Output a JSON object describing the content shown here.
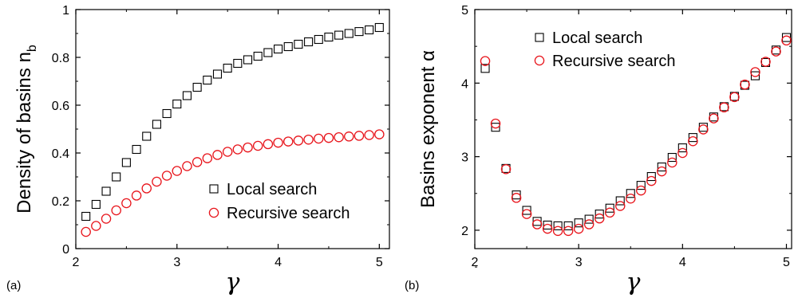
{
  "chart_data": [
    {
      "type": "scatter",
      "panel_label": "(a)",
      "xlabel": "γ",
      "ylabel": "Density of basins n",
      "ylabel_sub": "b",
      "xlim": [
        2,
        5.1
      ],
      "ylim": [
        0,
        1
      ],
      "xticks": [
        "2",
        "3",
        "4",
        "5"
      ],
      "yticks": [
        "0",
        "0.2",
        "0.4",
        "0.6",
        "0.8",
        "1"
      ],
      "legend_position": "lower-right",
      "series": [
        {
          "name": "Local search",
          "marker": "square",
          "color": "#000000",
          "x": [
            2.1,
            2.2,
            2.3,
            2.4,
            2.5,
            2.6,
            2.7,
            2.8,
            2.9,
            3.0,
            3.1,
            3.2,
            3.3,
            3.4,
            3.5,
            3.6,
            3.7,
            3.8,
            3.9,
            4.0,
            4.1,
            4.2,
            4.3,
            4.4,
            4.5,
            4.6,
            4.7,
            4.8,
            4.9,
            5.0
          ],
          "y": [
            0.135,
            0.185,
            0.24,
            0.3,
            0.36,
            0.415,
            0.47,
            0.52,
            0.565,
            0.605,
            0.64,
            0.675,
            0.705,
            0.73,
            0.755,
            0.775,
            0.79,
            0.805,
            0.82,
            0.835,
            0.845,
            0.855,
            0.865,
            0.875,
            0.885,
            0.893,
            0.9,
            0.908,
            0.915,
            0.925
          ]
        },
        {
          "name": "Recursive search",
          "marker": "circle",
          "color": "#e8141b",
          "x": [
            2.1,
            2.2,
            2.3,
            2.4,
            2.5,
            2.6,
            2.7,
            2.8,
            2.9,
            3.0,
            3.1,
            3.2,
            3.3,
            3.4,
            3.5,
            3.6,
            3.7,
            3.8,
            3.9,
            4.0,
            4.1,
            4.2,
            4.3,
            4.4,
            4.5,
            4.6,
            4.7,
            4.8,
            4.9,
            5.0
          ],
          "y": [
            0.07,
            0.095,
            0.125,
            0.16,
            0.19,
            0.222,
            0.252,
            0.28,
            0.305,
            0.325,
            0.345,
            0.362,
            0.378,
            0.392,
            0.405,
            0.415,
            0.423,
            0.43,
            0.437,
            0.443,
            0.448,
            0.452,
            0.456,
            0.46,
            0.463,
            0.466,
            0.469,
            0.472,
            0.475,
            0.478
          ]
        }
      ]
    },
    {
      "type": "scatter",
      "panel_label": "(b)",
      "xlabel": "γ",
      "ylabel": "Basins exponent α",
      "xlim": [
        2,
        5.05
      ],
      "ylim": [
        1.75,
        5
      ],
      "xticks": [
        "2",
        "3",
        "4",
        "5"
      ],
      "yticks": [
        "2",
        "3",
        "4",
        "5"
      ],
      "legend_position": "top-left",
      "series": [
        {
          "name": "Local search",
          "marker": "square",
          "color": "#000000",
          "x": [
            2.1,
            2.2,
            2.3,
            2.4,
            2.5,
            2.6,
            2.7,
            2.8,
            2.9,
            3.0,
            3.1,
            3.2,
            3.3,
            3.4,
            3.5,
            3.6,
            3.7,
            3.8,
            3.9,
            4.0,
            4.1,
            4.2,
            4.3,
            4.4,
            4.5,
            4.6,
            4.7,
            4.8,
            4.9,
            5.0
          ],
          "y": [
            4.2,
            3.4,
            2.84,
            2.48,
            2.27,
            2.12,
            2.07,
            2.06,
            2.06,
            2.1,
            2.15,
            2.22,
            2.3,
            2.4,
            2.5,
            2.61,
            2.73,
            2.86,
            2.99,
            3.12,
            3.26,
            3.4,
            3.54,
            3.68,
            3.82,
            3.97,
            4.1,
            4.28,
            4.45,
            4.62
          ]
        },
        {
          "name": "Recursive search",
          "marker": "circle",
          "color": "#e8141b",
          "x": [
            2.1,
            2.2,
            2.3,
            2.4,
            2.5,
            2.6,
            2.7,
            2.8,
            2.9,
            3.0,
            3.1,
            3.2,
            3.3,
            3.4,
            3.5,
            3.6,
            3.7,
            3.8,
            3.9,
            4.0,
            4.1,
            4.2,
            4.3,
            4.4,
            4.5,
            4.6,
            4.7,
            4.8,
            4.9,
            5.0
          ],
          "y": [
            4.3,
            3.45,
            2.83,
            2.44,
            2.22,
            2.08,
            2.02,
            1.99,
            1.99,
            2.02,
            2.08,
            2.16,
            2.24,
            2.33,
            2.43,
            2.54,
            2.67,
            2.8,
            2.92,
            3.05,
            3.21,
            3.37,
            3.52,
            3.67,
            3.81,
            3.98,
            4.15,
            4.29,
            4.43,
            4.58
          ]
        }
      ]
    }
  ]
}
